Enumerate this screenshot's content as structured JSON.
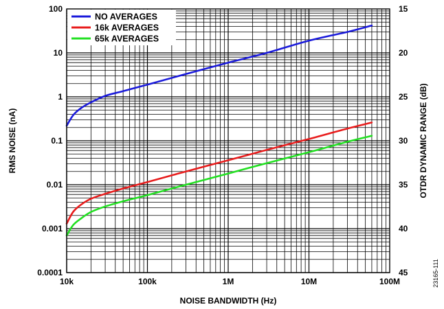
{
  "figure_id": "23165-111",
  "chart_data": {
    "type": "line",
    "title": "",
    "xlabel": "NOISE BANDWIDTH (Hz)",
    "ylabel": "RMS NOISE (nA)",
    "y2label": "OTDR DYNAMIC RANGE (dB)",
    "x_scale": "log",
    "y_scale": "log",
    "xlim": [
      10000,
      100000000
    ],
    "ylim": [
      0.0001,
      100
    ],
    "y2lim": [
      15,
      45
    ],
    "x_ticks": [
      {
        "value": 10000,
        "label": "10k"
      },
      {
        "value": 100000,
        "label": "100k"
      },
      {
        "value": 1000000,
        "label": "1M"
      },
      {
        "value": 10000000,
        "label": "10M"
      },
      {
        "value": 100000000,
        "label": "100M"
      }
    ],
    "y_ticks": [
      {
        "value": 100,
        "label": "100"
      },
      {
        "value": 10,
        "label": "10"
      },
      {
        "value": 1,
        "label": "1"
      },
      {
        "value": 0.1,
        "label": "0.1"
      },
      {
        "value": 0.01,
        "label": "0.01"
      },
      {
        "value": 0.001,
        "label": "0.001"
      },
      {
        "value": 0.0001,
        "label": "0.0001"
      }
    ],
    "y2_ticks": [
      {
        "value": 15,
        "label": "15"
      },
      {
        "value": 20,
        "label": "20"
      },
      {
        "value": 25,
        "label": "25"
      },
      {
        "value": 30,
        "label": "30"
      },
      {
        "value": 35,
        "label": "35"
      },
      {
        "value": 40,
        "label": "40"
      },
      {
        "value": 45,
        "label": "45"
      }
    ],
    "grid": true,
    "legend_position": "top-left",
    "series": [
      {
        "name": "NO AVERAGES",
        "color": "#1a1adb",
        "x": [
          10000,
          12000,
          15000,
          20000,
          30000,
          50000,
          100000,
          300000,
          1000000,
          3000000,
          10000000,
          30000000,
          60000000
        ],
        "y": [
          0.22,
          0.38,
          0.55,
          0.75,
          1.05,
          1.35,
          1.9,
          3.3,
          6.0,
          10.0,
          19.0,
          30.0,
          42.0
        ]
      },
      {
        "name": "16k AVERAGES",
        "color": "#e81c1c",
        "x": [
          10000,
          12000,
          15000,
          20000,
          30000,
          50000,
          100000,
          300000,
          1000000,
          3000000,
          10000000,
          30000000,
          60000000
        ],
        "y": [
          0.0013,
          0.0024,
          0.0035,
          0.0048,
          0.0062,
          0.0082,
          0.0115,
          0.02,
          0.036,
          0.062,
          0.11,
          0.19,
          0.26
        ]
      },
      {
        "name": "65k AVERAGES",
        "color": "#22e022",
        "x": [
          10000,
          12000,
          15000,
          20000,
          30000,
          50000,
          100000,
          300000,
          1000000,
          3000000,
          10000000,
          30000000,
          60000000
        ],
        "y": [
          0.0007,
          0.0012,
          0.0017,
          0.0024,
          0.0032,
          0.0042,
          0.0058,
          0.01,
          0.018,
          0.031,
          0.055,
          0.095,
          0.13
        ]
      }
    ]
  }
}
